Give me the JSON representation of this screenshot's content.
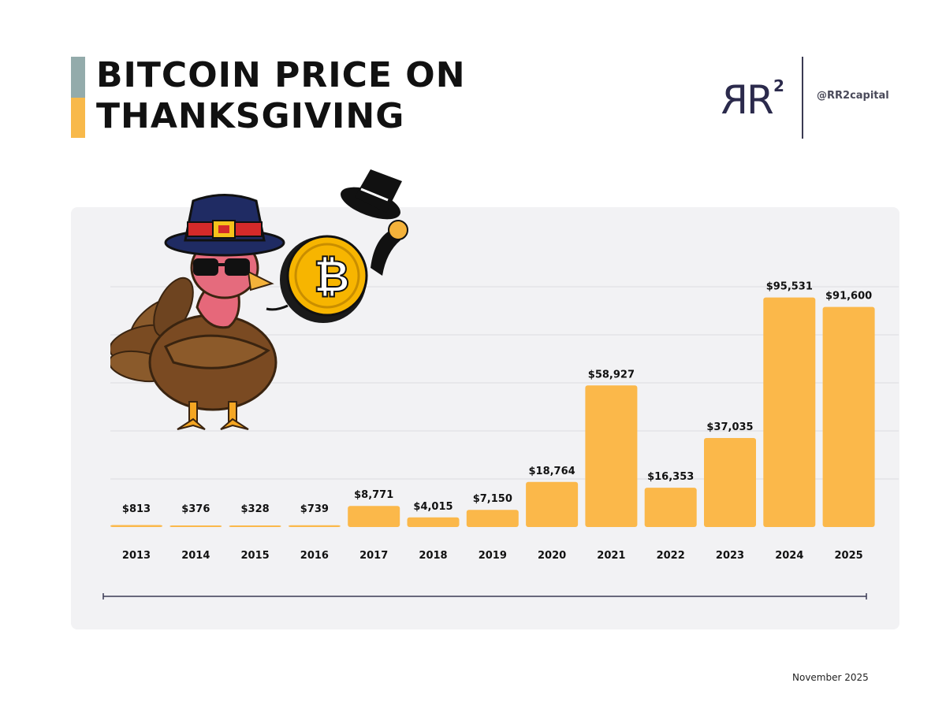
{
  "header": {
    "title_line1": "BITCOIN PRICE ON",
    "title_line2": "THANKSGIVING",
    "accent_top_color": "#93abab",
    "accent_bottom_color": "#f8b94a"
  },
  "brand": {
    "logo_text": "RR",
    "logo_superscript": "2",
    "handle": "@RR2capital",
    "logo_color": "#2b2a4c"
  },
  "footer": {
    "date": "November 2025"
  },
  "colors": {
    "bar": "#fbb84a",
    "grid": "#dcdce0",
    "axis_line": "#3b3b55",
    "panel": "#f2f2f4"
  },
  "chart_data": {
    "type": "bar",
    "title": "BITCOIN PRICE ON THANKSGIVING",
    "categories": [
      "2013",
      "2014",
      "2015",
      "2016",
      "2017",
      "2018",
      "2019",
      "2020",
      "2021",
      "2022",
      "2023",
      "2024",
      "2025"
    ],
    "values": [
      813,
      376,
      328,
      739,
      8771,
      4015,
      7150,
      18764,
      58927,
      16353,
      37035,
      95531,
      91600
    ],
    "labels": [
      "$813",
      "$376",
      "$328",
      "$739",
      "$8,771",
      "$4,015",
      "$7,150",
      "$18,764",
      "$58,927",
      "$16,353",
      "$37,035",
      "$95,531",
      "$91,600"
    ],
    "xlabel": "",
    "ylabel": "",
    "ylim": [
      0,
      100000
    ],
    "grid": true
  }
}
